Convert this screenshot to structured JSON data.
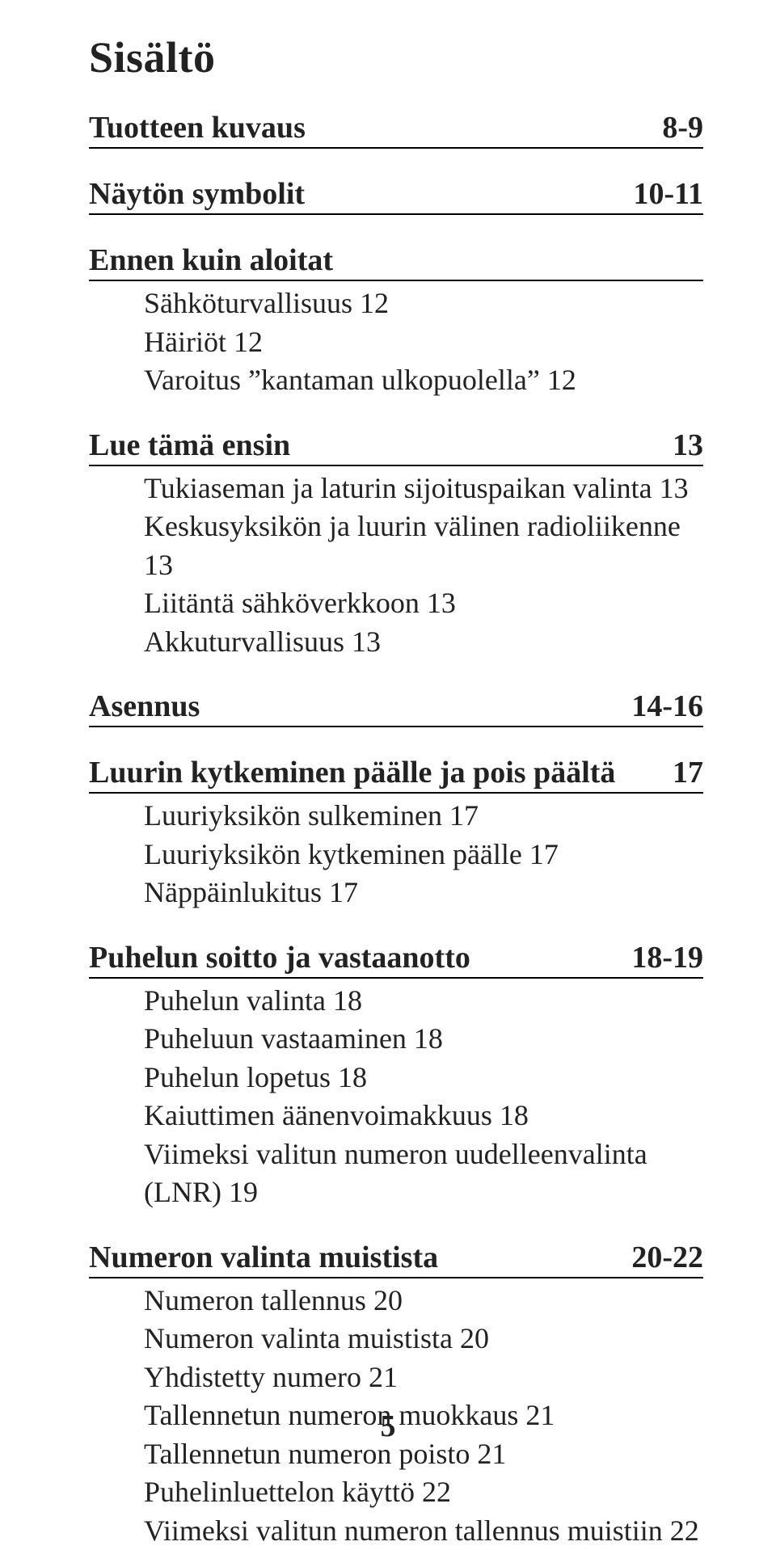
{
  "title": "Sisältö",
  "page_number": "5",
  "colors": {
    "text": "#222222",
    "background": "#ffffff",
    "rule": "#000000"
  },
  "typography": {
    "family": "serif",
    "title_fontsize_pt": 40,
    "heading_fontsize_pt": 28,
    "body_fontsize_pt": 27
  },
  "sections": [
    {
      "heading": "Tuotteen kuvaus",
      "page": "8-9",
      "items": []
    },
    {
      "heading": "Näytön symbolit",
      "page": "10-11",
      "items": []
    },
    {
      "heading": "Ennen kuin aloitat",
      "page": "",
      "items": [
        "Sähköturvallisuus  12",
        "Häiriöt  12",
        "Varoitus ”kantaman ulkopuolella”  12"
      ]
    },
    {
      "heading": "Lue tämä ensin",
      "page": "13",
      "items": [
        "Tukiaseman ja laturin sijoituspaikan valinta  13",
        "Keskusyksikön ja luurin välinen radioliikenne  13",
        "Liitäntä sähköverkkoon  13",
        "Akkuturvallisuus  13"
      ]
    },
    {
      "heading": "Asennus",
      "page": "14-16",
      "items": []
    },
    {
      "heading": "Luurin kytkeminen päälle ja pois päältä",
      "page": "17",
      "items": [
        "Luuriyksikön sulkeminen  17",
        "Luuriyksikön kytkeminen päälle  17",
        "Näppäinlukitus  17"
      ]
    },
    {
      "heading": "Puhelun soitto ja vastaanotto",
      "page": "18-19",
      "items": [
        "Puhelun valinta  18",
        "Puheluun vastaaminen  18",
        "Puhelun lopetus  18",
        "Kaiuttimen äänenvoimakkuus  18",
        "Viimeksi valitun numeron uudelleenvalinta (LNR)  19"
      ]
    },
    {
      "heading": "Numeron valinta muistista",
      "page": "20-22",
      "items": [
        "Numeron tallennus  20",
        "Numeron valinta muistista  20",
        "Yhdistetty numero  21",
        "Tallennetun numeron muokkaus   21",
        "Tallennetun numeron poisto  21",
        "Puhelinluettelon käyttö  22",
        "Viimeksi valitun numeron tallennus muistiin  22"
      ]
    }
  ]
}
